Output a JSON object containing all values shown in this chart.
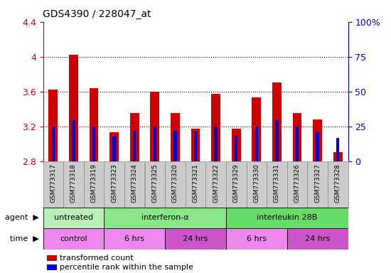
{
  "title": "GDS4390 / 228047_at",
  "samples": [
    "GSM773317",
    "GSM773318",
    "GSM773319",
    "GSM773323",
    "GSM773324",
    "GSM773325",
    "GSM773320",
    "GSM773321",
    "GSM773322",
    "GSM773329",
    "GSM773330",
    "GSM773331",
    "GSM773326",
    "GSM773327",
    "GSM773328"
  ],
  "red_values": [
    3.62,
    4.02,
    3.64,
    3.13,
    3.35,
    3.6,
    3.35,
    3.17,
    3.57,
    3.17,
    3.53,
    3.7,
    3.35,
    3.28,
    2.9
  ],
  "blue_values": [
    3.2,
    3.27,
    3.2,
    3.08,
    3.15,
    3.2,
    3.15,
    3.14,
    3.2,
    3.09,
    3.2,
    3.27,
    3.2,
    3.13,
    3.07
  ],
  "base_value": 2.8,
  "ylim_left": [
    2.8,
    4.4
  ],
  "ylim_right": [
    0,
    100
  ],
  "yticks_left": [
    2.8,
    3.2,
    3.6,
    4.0,
    4.4
  ],
  "yticks_right": [
    0,
    25,
    50,
    75,
    100
  ],
  "ytick_labels_left": [
    "2.8",
    "3.2",
    "3.6",
    "4",
    "4.4"
  ],
  "ytick_labels_right": [
    "0",
    "25",
    "50",
    "75",
    "100%"
  ],
  "dotted_lines": [
    3.2,
    3.6,
    4.0
  ],
  "agent_groups": [
    {
      "label": "untreated",
      "start": 0,
      "end": 3,
      "color": "#b8f0b8"
    },
    {
      "label": "interferon-α",
      "start": 3,
      "end": 9,
      "color": "#88e888"
    },
    {
      "label": "interleukin 28B",
      "start": 9,
      "end": 15,
      "color": "#66dd66"
    }
  ],
  "time_groups": [
    {
      "label": "control",
      "start": 0,
      "end": 3,
      "color": "#ee88ee"
    },
    {
      "label": "6 hrs",
      "start": 3,
      "end": 6,
      "color": "#ee88ee"
    },
    {
      "label": "24 hrs",
      "start": 6,
      "end": 9,
      "color": "#cc55cc"
    },
    {
      "label": "6 hrs",
      "start": 9,
      "end": 12,
      "color": "#ee88ee"
    },
    {
      "label": "24 hrs",
      "start": 12,
      "end": 15,
      "color": "#cc55cc"
    }
  ],
  "legend_items": [
    {
      "label": "transformed count",
      "color": "#cc0000"
    },
    {
      "label": "percentile rank within the sample",
      "color": "#0000cc"
    }
  ],
  "red_bar_width": 0.45,
  "blue_bar_width": 0.15,
  "red_color": "#cc0000",
  "blue_color": "#0000cc",
  "left_axis_color": "#cc0000",
  "right_axis_color": "#0000cc",
  "sample_box_color": "#cccccc",
  "sample_box_edge": "#888888"
}
